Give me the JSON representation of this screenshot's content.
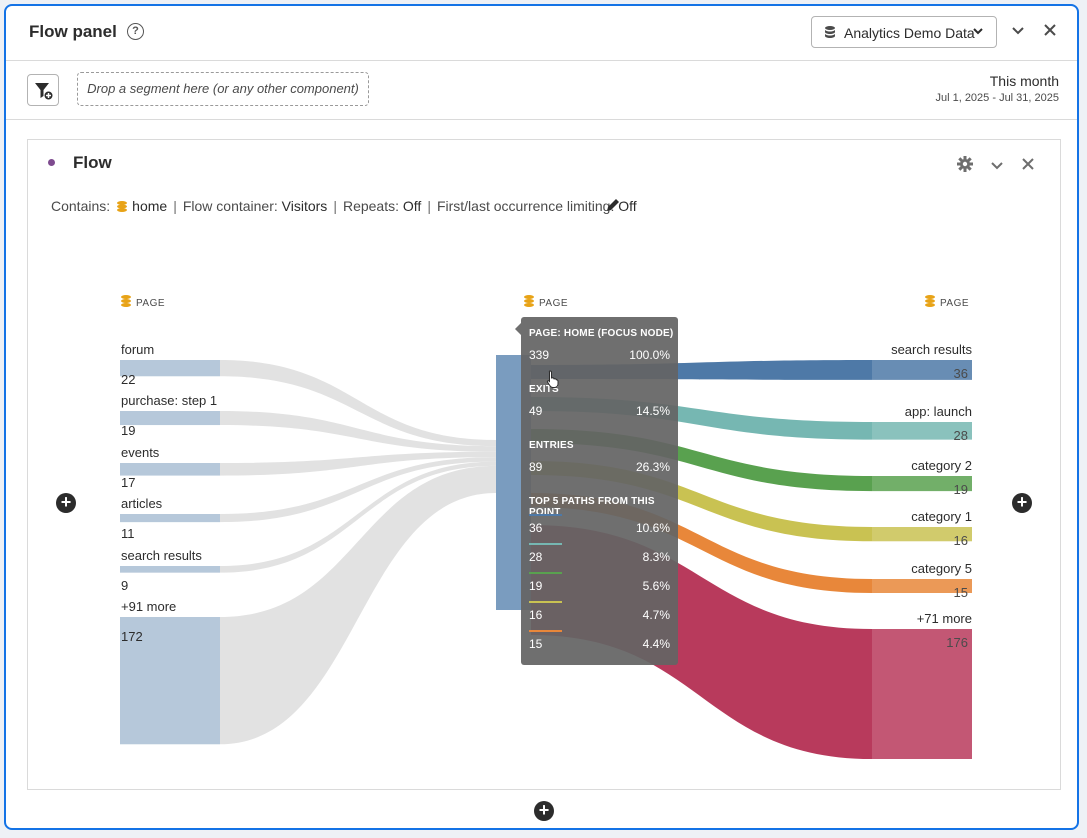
{
  "panel": {
    "title": "Flow panel",
    "help_icon": "?",
    "data_source": "Analytics Demo Data"
  },
  "toolbar": {
    "dropzone_text": "Drop a segment here (or any other component)",
    "date_label": "This month",
    "date_range": "Jul 1, 2025 - Jul 31, 2025"
  },
  "viz": {
    "title": "Flow",
    "settings": {
      "contains_label": "Contains:",
      "contains_value": "home",
      "container_label": "Flow container:",
      "container_value": "Visitors",
      "repeats_label": "Repeats:",
      "repeats_value": "Off",
      "limiting_label": "First/last occurrence limiting:",
      "limiting_value": "Off"
    },
    "column_headers": [
      "PAGE",
      "PAGE",
      "PAGE"
    ],
    "left_nodes": [
      {
        "label": "forum",
        "value": "22"
      },
      {
        "label": "purchase: step 1",
        "value": "19"
      },
      {
        "label": "events",
        "value": "17"
      },
      {
        "label": "articles",
        "value": "11"
      },
      {
        "label": "search results",
        "value": "9"
      },
      {
        "label": "+91 more",
        "value": "172"
      }
    ],
    "right_nodes": [
      {
        "label": "search results",
        "value": "36"
      },
      {
        "label": "app: launch",
        "value": "28"
      },
      {
        "label": "category 2",
        "value": "19"
      },
      {
        "label": "category 1",
        "value": "16"
      },
      {
        "label": "category 5",
        "value": "15"
      },
      {
        "label": "+71 more",
        "value": "176"
      }
    ],
    "path_colors": [
      "#4e79a7",
      "#76b7b2",
      "#59a14f",
      "#c9c252",
      "#e8873a",
      "#b83a5c"
    ],
    "tooltip": {
      "focus_header": "PAGE: HOME (FOCUS NODE)",
      "focus_count": "339",
      "focus_pct": "100.0%",
      "exits_header": "EXITS",
      "exits_count": "49",
      "exits_pct": "14.5%",
      "entries_header": "ENTRIES",
      "entries_count": "89",
      "entries_pct": "26.3%",
      "paths_header": "TOP 5 PATHS FROM THIS POINT",
      "paths": [
        {
          "count": "36",
          "pct": "10.6%"
        },
        {
          "count": "28",
          "pct": "8.3%"
        },
        {
          "count": "19",
          "pct": "5.6%"
        },
        {
          "count": "16",
          "pct": "4.7%"
        },
        {
          "count": "15",
          "pct": "4.4%"
        }
      ]
    }
  }
}
